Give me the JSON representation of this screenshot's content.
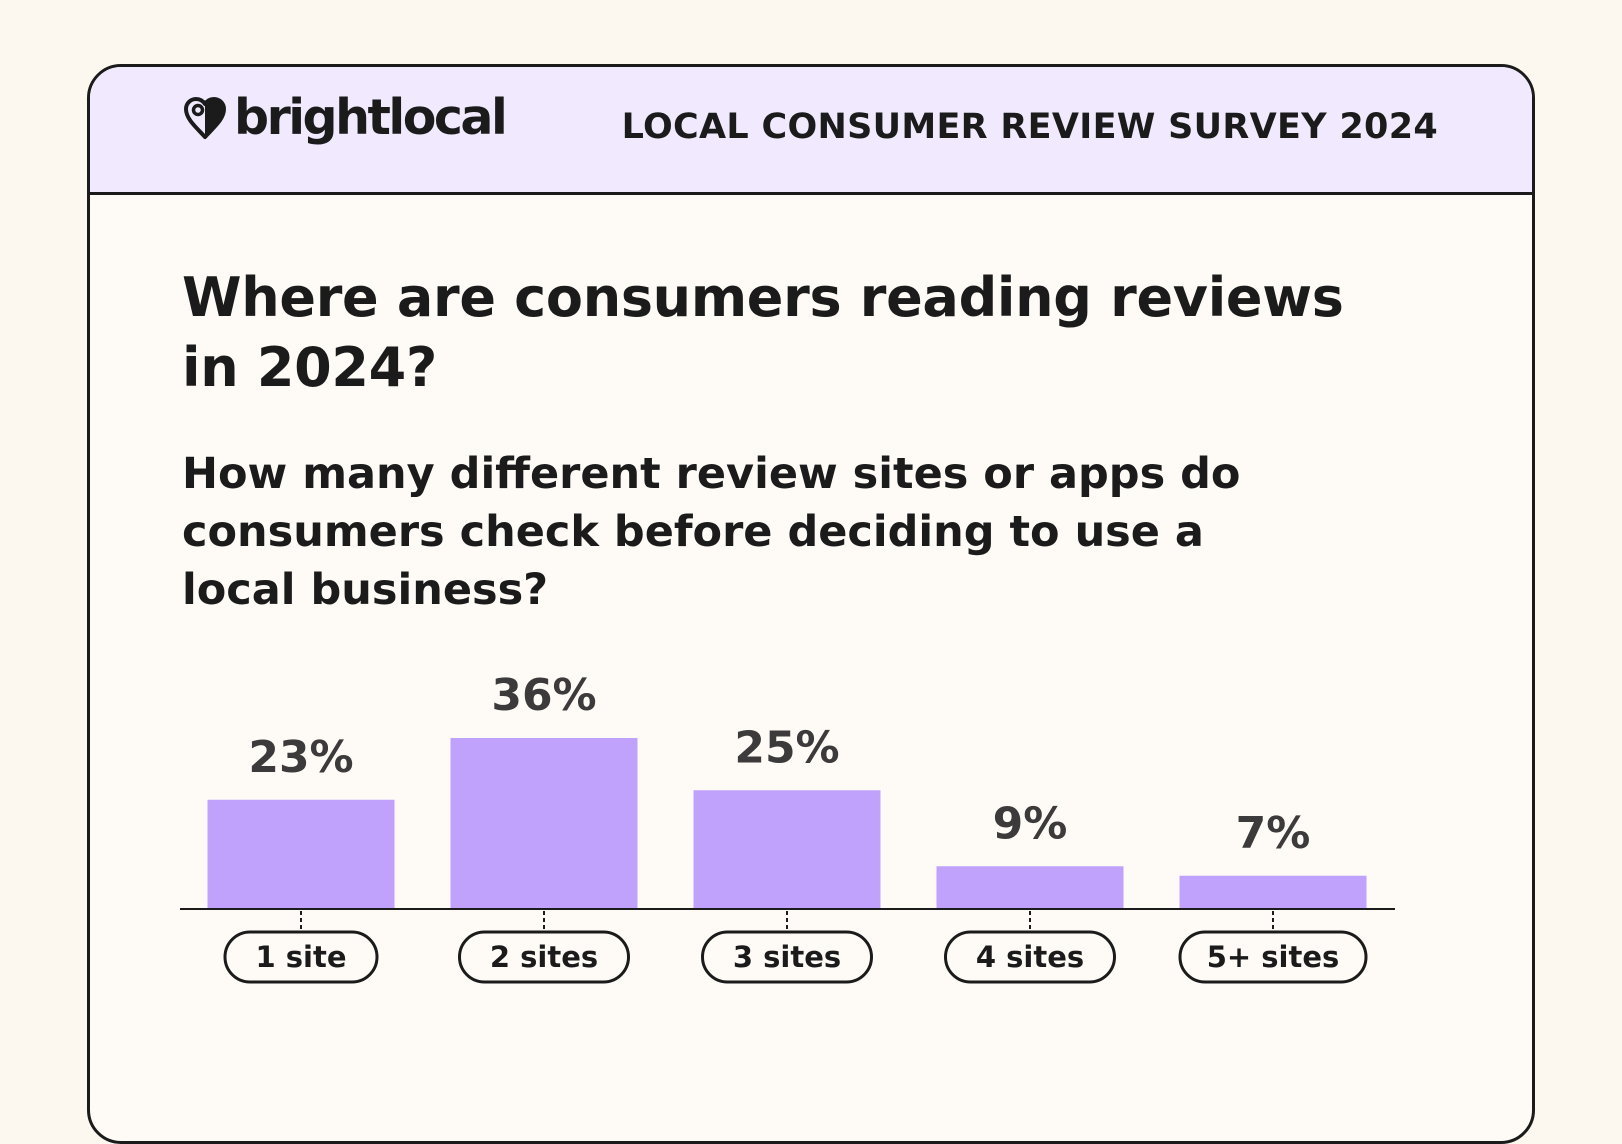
{
  "header": {
    "brand_name": "brightlocal",
    "brand_icon": "heart-pin-icon",
    "survey_title": "LOCAL CONSUMER REVIEW SURVEY 2024"
  },
  "page_title": "Where are consumers reading reviews in 2024?",
  "question": "How many different review sites or apps do consumers check before deciding to use a local business?",
  "colors": {
    "page_background": "#fcf8f0",
    "card_background": "#fefbf7",
    "header_background": "#f1eafe",
    "bar": "#c0a1fb",
    "text": "#1b1b1b",
    "value_label": "#3c3a3a"
  },
  "chart_data": {
    "type": "bar",
    "categories": [
      "1 site",
      "2 sites",
      "3 sites",
      "4 sites",
      "5+ sites"
    ],
    "values": [
      23,
      36,
      25,
      9,
      7
    ],
    "value_labels": [
      "23%",
      "36%",
      "25%",
      "9%",
      "7%"
    ],
    "ylim": [
      0,
      40
    ],
    "grid": false,
    "legend": "none"
  }
}
